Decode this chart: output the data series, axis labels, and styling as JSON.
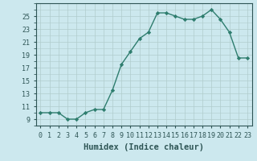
{
  "x": [
    0,
    1,
    2,
    3,
    4,
    5,
    6,
    7,
    8,
    9,
    10,
    11,
    12,
    13,
    14,
    15,
    16,
    17,
    18,
    19,
    20,
    21,
    22,
    23
  ],
  "y": [
    10,
    10,
    10,
    9,
    9,
    10,
    10.5,
    10.5,
    13.5,
    17.5,
    19.5,
    21.5,
    22.5,
    25.5,
    25.5,
    25,
    24.5,
    24.5,
    25,
    26,
    24.5,
    22.5,
    18.5,
    18.5
  ],
  "line_color": "#2e7d6e",
  "marker": "D",
  "marker_size": 2.2,
  "bg_color": "#cce8ee",
  "grid_color": "#b0cccc",
  "xlabel": "Humidex (Indice chaleur)",
  "ylim": [
    8.0,
    27.0
  ],
  "yticks": [
    9,
    11,
    13,
    15,
    17,
    19,
    21,
    23,
    25
  ],
  "xlim": [
    -0.5,
    23.5
  ],
  "xticks": [
    0,
    1,
    2,
    3,
    4,
    5,
    6,
    7,
    8,
    9,
    10,
    11,
    12,
    13,
    14,
    15,
    16,
    17,
    18,
    19,
    20,
    21,
    22,
    23
  ],
  "xtick_labels": [
    "0",
    "1",
    "2",
    "3",
    "4",
    "5",
    "6",
    "7",
    "8",
    "9",
    "10",
    "11",
    "12",
    "13",
    "14",
    "15",
    "16",
    "17",
    "18",
    "19",
    "20",
    "21",
    "22",
    "23"
  ],
  "xlabel_fontsize": 7.5,
  "tick_fontsize": 6.0,
  "line_width": 1.0
}
